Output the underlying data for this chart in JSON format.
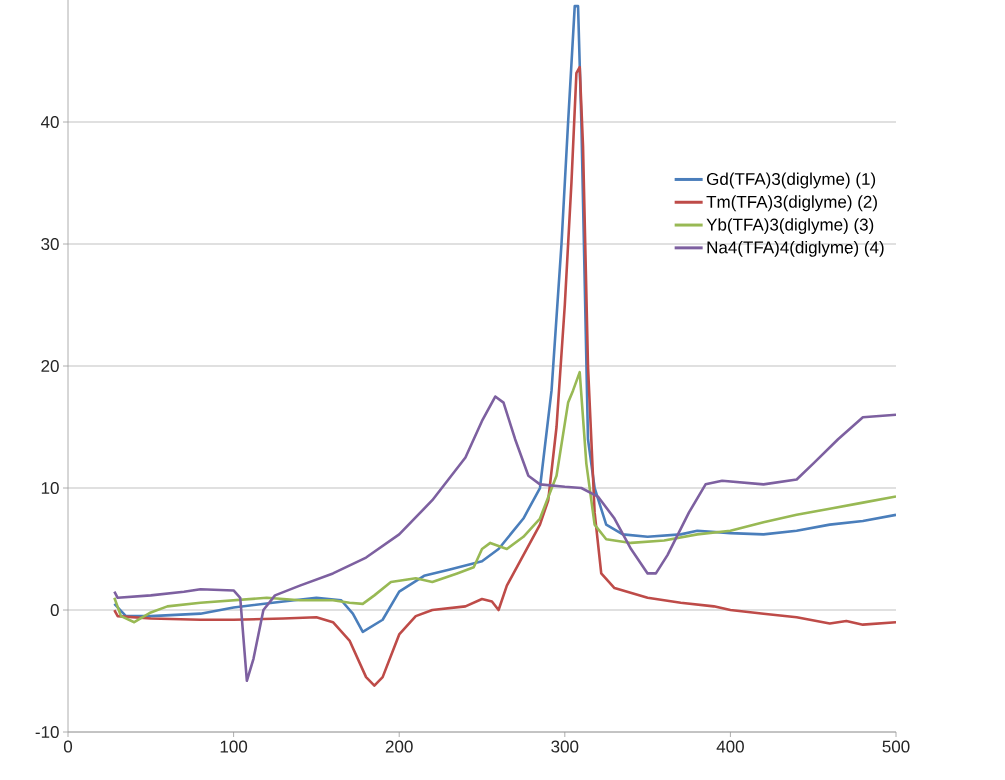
{
  "chart_data": {
    "type": "line",
    "xlim": [
      0,
      500
    ],
    "ylim": [
      -10,
      50
    ],
    "xticks": [
      0,
      100,
      200,
      300,
      400,
      500
    ],
    "yticks": [
      -10,
      0,
      10,
      20,
      30,
      40
    ],
    "grid": "y",
    "legend": "right",
    "marker": "none",
    "line_style": "solid",
    "series": [
      {
        "name": "Gd(TFA)3(diglyme) (1)",
        "color": "#4a7ebb",
        "x": [
          28,
          35,
          50,
          80,
          100,
          130,
          150,
          165,
          172,
          178,
          190,
          200,
          215,
          230,
          250,
          260,
          275,
          285,
          292,
          298,
          302,
          306,
          308,
          310,
          314,
          318,
          325,
          335,
          350,
          370,
          380,
          400,
          420,
          440,
          460,
          480,
          500
        ],
        "values": [
          0.5,
          -0.5,
          -0.5,
          -0.3,
          0.2,
          0.7,
          1.0,
          0.8,
          -0.3,
          -1.8,
          -0.8,
          1.5,
          2.8,
          3.3,
          4.0,
          5.0,
          7.5,
          10,
          18,
          30,
          40,
          49.5,
          49.5,
          40,
          14,
          10,
          7,
          6.2,
          6.0,
          6.2,
          6.5,
          6.3,
          6.2,
          6.5,
          7.0,
          7.3,
          7.8
        ]
      },
      {
        "name": "Tm(TFA)3(diglyme) (2)",
        "color": "#be4b48",
        "x": [
          28,
          30,
          50,
          80,
          100,
          130,
          150,
          160,
          170,
          180,
          185,
          190,
          200,
          210,
          220,
          240,
          250,
          256,
          260,
          265,
          275,
          285,
          290,
          295,
          300,
          304,
          307,
          309,
          311,
          314,
          318,
          322,
          330,
          350,
          370,
          390,
          400,
          420,
          440,
          460,
          470,
          480,
          500
        ],
        "values": [
          0,
          -0.5,
          -0.7,
          -0.8,
          -0.8,
          -0.7,
          -0.6,
          -1.0,
          -2.5,
          -5.5,
          -6.2,
          -5.5,
          -2.0,
          -0.5,
          0,
          0.3,
          0.9,
          0.7,
          0,
          2.0,
          4.5,
          7,
          9,
          15,
          25,
          35,
          44,
          44.5,
          38,
          20,
          8,
          3,
          1.8,
          1.0,
          0.6,
          0.3,
          0,
          -0.3,
          -0.6,
          -1.1,
          -0.9,
          -1.2,
          -1.0
        ]
      },
      {
        "name": "Yb(TFA)3(diglyme) (3)",
        "color": "#98b954",
        "x": [
          28,
          32,
          40,
          50,
          60,
          80,
          100,
          120,
          130,
          140,
          160,
          170,
          178,
          185,
          195,
          210,
          220,
          235,
          245,
          250,
          255,
          265,
          275,
          285,
          295,
          302,
          305,
          309,
          313,
          318,
          325,
          340,
          360,
          380,
          400,
          420,
          440,
          460,
          480,
          500
        ],
        "values": [
          1.0,
          -0.5,
          -1.0,
          -0.2,
          0.3,
          0.6,
          0.8,
          1.0,
          0.9,
          0.8,
          0.8,
          0.6,
          0.5,
          1.2,
          2.3,
          2.6,
          2.3,
          3.0,
          3.5,
          5.0,
          5.5,
          5.0,
          6.0,
          7.5,
          11,
          17,
          18,
          19.5,
          12,
          7,
          5.8,
          5.5,
          5.7,
          6.2,
          6.5,
          7.2,
          7.8,
          8.3,
          8.8,
          9.3
        ]
      },
      {
        "name": "Na4(TFA)4(diglyme) (4)",
        "color": "#7d60a0",
        "x": [
          28,
          30,
          50,
          70,
          80,
          100,
          104,
          108,
          112,
          118,
          125,
          140,
          160,
          180,
          200,
          220,
          240,
          250,
          258,
          263,
          270,
          278,
          285,
          300,
          310,
          320,
          330,
          340,
          350,
          355,
          362,
          375,
          385,
          395,
          420,
          440,
          450,
          465,
          480,
          500
        ],
        "values": [
          1.5,
          1.0,
          1.2,
          1.5,
          1.7,
          1.6,
          1.0,
          -5.8,
          -4,
          0,
          1.2,
          2,
          3,
          4.3,
          6.2,
          9,
          12.5,
          15.5,
          17.5,
          17,
          14,
          11,
          10.3,
          10.1,
          10.0,
          9.3,
          7.5,
          5,
          3.0,
          3.0,
          4.5,
          8,
          10.3,
          10.6,
          10.3,
          10.7,
          12,
          14,
          15.8,
          16
        ]
      }
    ]
  }
}
